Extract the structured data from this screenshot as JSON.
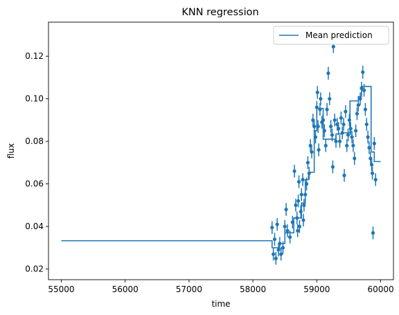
{
  "chart_data": {
    "type": "scatter",
    "title": "KNN regression",
    "xlabel": "time",
    "ylabel": "flux",
    "xlim": [
      54800,
      60200
    ],
    "ylim": [
      0.015,
      0.136
    ],
    "x_ticks": [
      55000,
      56000,
      57000,
      58000,
      59000,
      60000
    ],
    "y_ticks": [
      0.02,
      0.04,
      0.06,
      0.08,
      0.1,
      0.12
    ],
    "y_tick_labels": [
      "0.02",
      "0.04",
      "0.06",
      "0.08",
      "0.10",
      "0.12"
    ],
    "grid": false,
    "legend_position": "top-right",
    "color": "#1f77b4",
    "series": [
      {
        "name": "Mean prediction",
        "kind": "line",
        "points": [
          [
            55000,
            0.0333
          ],
          [
            58300,
            0.0333
          ],
          [
            58300,
            0.03
          ],
          [
            58420,
            0.03
          ],
          [
            58420,
            0.032
          ],
          [
            58500,
            0.032
          ],
          [
            58500,
            0.037
          ],
          [
            58640,
            0.037
          ],
          [
            58640,
            0.044
          ],
          [
            58760,
            0.044
          ],
          [
            58760,
            0.051
          ],
          [
            58820,
            0.051
          ],
          [
            58820,
            0.062
          ],
          [
            58870,
            0.062
          ],
          [
            58870,
            0.0655
          ],
          [
            58960,
            0.0655
          ],
          [
            58960,
            0.085
          ],
          [
            59000,
            0.085
          ],
          [
            59000,
            0.0955
          ],
          [
            59100,
            0.0955
          ],
          [
            59100,
            0.081
          ],
          [
            59300,
            0.081
          ],
          [
            59300,
            0.0835
          ],
          [
            59400,
            0.0835
          ],
          [
            59400,
            0.084
          ],
          [
            59520,
            0.084
          ],
          [
            59520,
            0.099
          ],
          [
            59650,
            0.099
          ],
          [
            59650,
            0.101
          ],
          [
            59700,
            0.101
          ],
          [
            59700,
            0.1058
          ],
          [
            59850,
            0.1058
          ],
          [
            59850,
            0.075
          ],
          [
            59900,
            0.075
          ],
          [
            59900,
            0.0705
          ],
          [
            60000,
            0.0705
          ]
        ]
      },
      {
        "name": "",
        "kind": "errorbar",
        "points": [
          [
            58300,
            0.0395,
            0.003
          ],
          [
            58320,
            0.027,
            0.003
          ],
          [
            58340,
            0.034,
            0.003
          ],
          [
            58360,
            0.025,
            0.003
          ],
          [
            58380,
            0.041,
            0.003
          ],
          [
            58400,
            0.029,
            0.003
          ],
          [
            58420,
            0.032,
            0.003
          ],
          [
            58440,
            0.027,
            0.003
          ],
          [
            58470,
            0.03,
            0.003
          ],
          [
            58500,
            0.04,
            0.003
          ],
          [
            58520,
            0.048,
            0.003
          ],
          [
            58540,
            0.038,
            0.003
          ],
          [
            58580,
            0.035,
            0.003
          ],
          [
            58620,
            0.042,
            0.003
          ],
          [
            58650,
            0.066,
            0.003
          ],
          [
            58670,
            0.05,
            0.003
          ],
          [
            58690,
            0.044,
            0.003
          ],
          [
            58700,
            0.038,
            0.003
          ],
          [
            58710,
            0.052,
            0.003
          ],
          [
            58720,
            0.061,
            0.003
          ],
          [
            58730,
            0.04,
            0.003
          ],
          [
            58750,
            0.047,
            0.003
          ],
          [
            58760,
            0.055,
            0.003
          ],
          [
            58780,
            0.062,
            0.003
          ],
          [
            58790,
            0.043,
            0.003
          ],
          [
            58800,
            0.05,
            0.003
          ],
          [
            58820,
            0.055,
            0.003
          ],
          [
            58840,
            0.06,
            0.003
          ],
          [
            58860,
            0.07,
            0.003
          ],
          [
            58880,
            0.065,
            0.003
          ],
          [
            58900,
            0.078,
            0.003
          ],
          [
            58920,
            0.075,
            0.003
          ],
          [
            58940,
            0.09,
            0.003
          ],
          [
            58960,
            0.087,
            0.003
          ],
          [
            58980,
            0.082,
            0.003
          ],
          [
            59000,
            0.096,
            0.003
          ],
          [
            59010,
            0.103,
            0.003
          ],
          [
            59020,
            0.087,
            0.003
          ],
          [
            59030,
            0.076,
            0.003
          ],
          [
            59050,
            0.095,
            0.003
          ],
          [
            59060,
            0.1,
            0.003
          ],
          [
            59080,
            0.089,
            0.003
          ],
          [
            59100,
            0.09,
            0.003
          ],
          [
            59120,
            0.085,
            0.003
          ],
          [
            59140,
            0.078,
            0.003
          ],
          [
            59160,
            0.095,
            0.003
          ],
          [
            59180,
            0.112,
            0.003
          ],
          [
            59200,
            0.1,
            0.003
          ],
          [
            59220,
            0.087,
            0.003
          ],
          [
            59240,
            0.083,
            0.003
          ],
          [
            59250,
            0.068,
            0.003
          ],
          [
            59260,
            0.1245,
            0.003
          ],
          [
            59280,
            0.09,
            0.003
          ],
          [
            59300,
            0.08,
            0.003
          ],
          [
            59320,
            0.088,
            0.003
          ],
          [
            59340,
            0.086,
            0.003
          ],
          [
            59360,
            0.08,
            0.003
          ],
          [
            59380,
            0.091,
            0.003
          ],
          [
            59400,
            0.084,
            0.003
          ],
          [
            59420,
            0.088,
            0.003
          ],
          [
            59430,
            0.064,
            0.003
          ],
          [
            59450,
            0.094,
            0.003
          ],
          [
            59470,
            0.078,
            0.003
          ],
          [
            59490,
            0.083,
            0.003
          ],
          [
            59510,
            0.09,
            0.003
          ],
          [
            59530,
            0.086,
            0.003
          ],
          [
            59550,
            0.082,
            0.003
          ],
          [
            59570,
            0.078,
            0.003
          ],
          [
            59590,
            0.072,
            0.003
          ],
          [
            59610,
            0.085,
            0.003
          ],
          [
            59630,
            0.093,
            0.003
          ],
          [
            59650,
            0.097,
            0.003
          ],
          [
            59680,
            0.1,
            0.003
          ],
          [
            59700,
            0.105,
            0.003
          ],
          [
            59720,
            0.1125,
            0.003
          ],
          [
            59740,
            0.104,
            0.003
          ],
          [
            59760,
            0.095,
            0.003
          ],
          [
            59780,
            0.088,
            0.003
          ],
          [
            59800,
            0.082,
            0.003
          ],
          [
            59820,
            0.077,
            0.003
          ],
          [
            59840,
            0.072,
            0.003
          ],
          [
            59860,
            0.069,
            0.003
          ],
          [
            59870,
            0.065,
            0.003
          ],
          [
            59880,
            0.037,
            0.003
          ],
          [
            59900,
            0.079,
            0.003
          ],
          [
            59920,
            0.062,
            0.003
          ]
        ]
      }
    ]
  }
}
